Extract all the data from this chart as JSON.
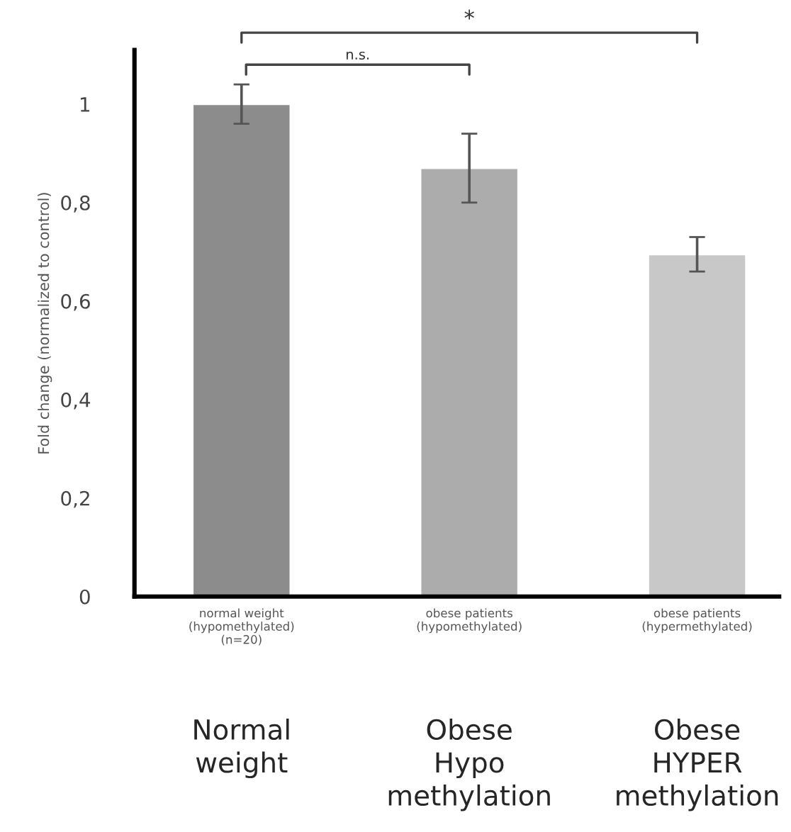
{
  "chart_data": {
    "type": "bar",
    "ylabel": "Fold change (normalized to control)",
    "categories": [
      "normal weight\n(hypomethylated)\n(n=20)",
      "obese patients\n(hypomethylated)",
      "obese patients\n(hypermethylated)"
    ],
    "values": [
      1.0,
      0.87,
      0.695
    ],
    "errors": [
      0.04,
      0.07,
      0.035
    ],
    "colors": [
      "#8c8c8c",
      "#acacac",
      "#c8c8c8"
    ],
    "ylim": [
      0,
      1.11
    ],
    "yticks": [
      0,
      {
        "value": 0.2,
        "label": "0,2"
      },
      {
        "value": 0.4,
        "label": "0,4"
      },
      {
        "value": 0.6,
        "label": "0,6"
      },
      {
        "value": 0.8,
        "label": "0,8"
      },
      1
    ],
    "grid": false,
    "annotations": [
      "n.s.",
      "*",
      "Normal\nweight",
      "Obese\nHypo\nmethylation",
      "Obese\nHYPER\nmethylation"
    ]
  }
}
